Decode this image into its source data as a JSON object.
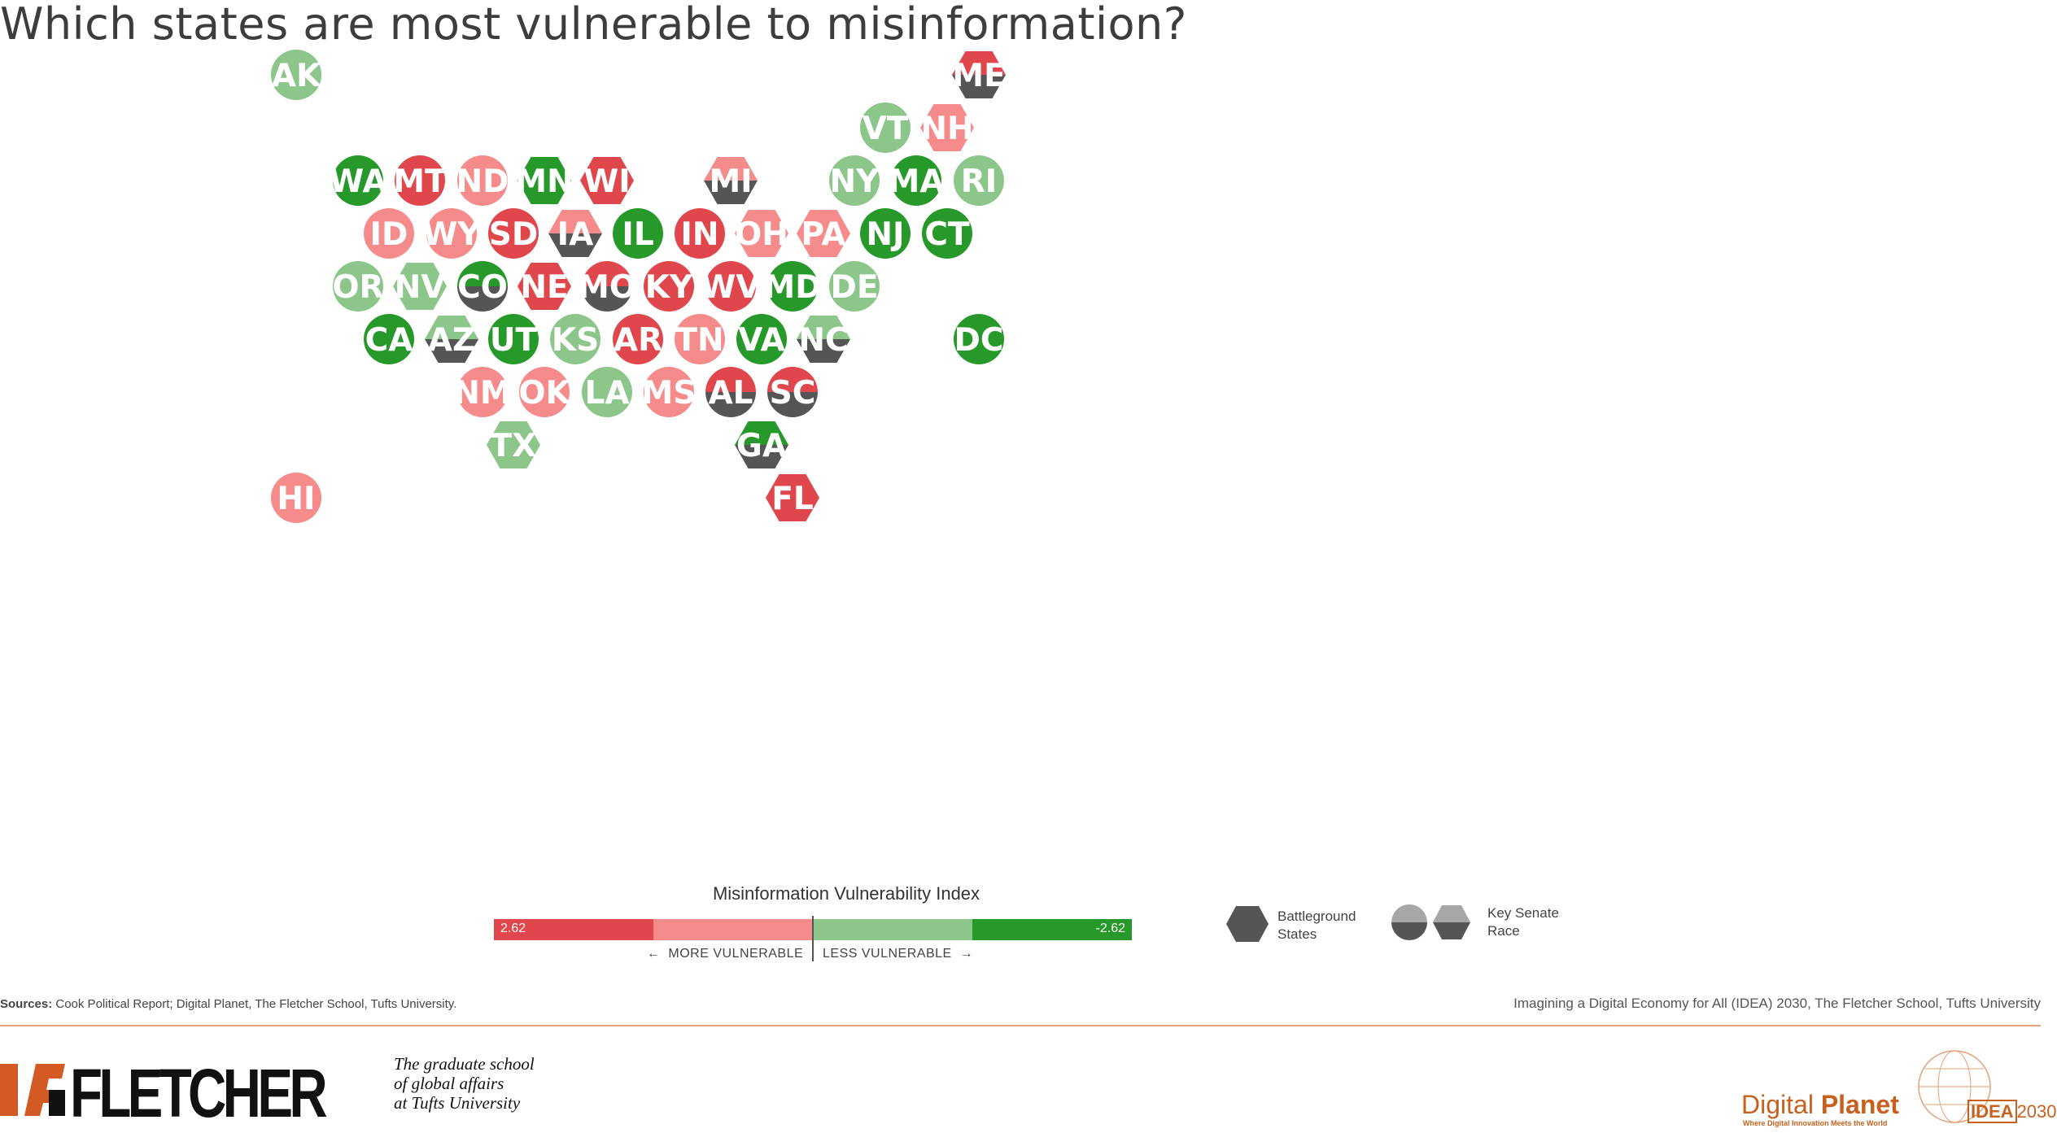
{
  "title": "Which states are most vulnerable to misinformation?",
  "colors": {
    "very_high": "#e0474c",
    "high": "#f58b8b",
    "low": "#8dc68b",
    "very_low": "#27982a",
    "senate": "#555555"
  },
  "states": [
    {
      "abbr": "AK",
      "cat": "low",
      "shape": "circle"
    },
    {
      "abbr": "ME",
      "cat": "very_high",
      "shape": "hex",
      "senate": true
    },
    {
      "abbr": "VT",
      "cat": "low",
      "shape": "circle"
    },
    {
      "abbr": "NH",
      "cat": "high",
      "shape": "hex"
    },
    {
      "abbr": "WA",
      "cat": "very_low",
      "shape": "circle"
    },
    {
      "abbr": "MT",
      "cat": "very_high",
      "shape": "circle"
    },
    {
      "abbr": "ND",
      "cat": "high",
      "shape": "circle"
    },
    {
      "abbr": "MN",
      "cat": "very_low",
      "shape": "hex"
    },
    {
      "abbr": "WI",
      "cat": "very_high",
      "shape": "hex"
    },
    {
      "abbr": "MI",
      "cat": "high",
      "shape": "hex",
      "senate": true
    },
    {
      "abbr": "NY",
      "cat": "low",
      "shape": "circle"
    },
    {
      "abbr": "MA",
      "cat": "very_low",
      "shape": "circle"
    },
    {
      "abbr": "RI",
      "cat": "low",
      "shape": "circle"
    },
    {
      "abbr": "ID",
      "cat": "high",
      "shape": "circle"
    },
    {
      "abbr": "WY",
      "cat": "high",
      "shape": "circle"
    },
    {
      "abbr": "SD",
      "cat": "very_high",
      "shape": "circle"
    },
    {
      "abbr": "IA",
      "cat": "high",
      "shape": "hex",
      "senate": true
    },
    {
      "abbr": "IL",
      "cat": "very_low",
      "shape": "circle"
    },
    {
      "abbr": "IN",
      "cat": "very_high",
      "shape": "circle"
    },
    {
      "abbr": "OH",
      "cat": "high",
      "shape": "hex"
    },
    {
      "abbr": "PA",
      "cat": "high",
      "shape": "hex"
    },
    {
      "abbr": "NJ",
      "cat": "very_low",
      "shape": "circle"
    },
    {
      "abbr": "CT",
      "cat": "very_low",
      "shape": "circle"
    },
    {
      "abbr": "OR",
      "cat": "low",
      "shape": "circle"
    },
    {
      "abbr": "NV",
      "cat": "low",
      "shape": "hex"
    },
    {
      "abbr": "CO",
      "cat": "very_low",
      "shape": "circle",
      "senate": true
    },
    {
      "abbr": "NE",
      "cat": "very_high",
      "shape": "hex"
    },
    {
      "abbr": "MO",
      "cat": "very_high",
      "shape": "circle",
      "senate": true
    },
    {
      "abbr": "KY",
      "cat": "very_high",
      "shape": "circle"
    },
    {
      "abbr": "WV",
      "cat": "very_high",
      "shape": "circle"
    },
    {
      "abbr": "MD",
      "cat": "very_low",
      "shape": "circle"
    },
    {
      "abbr": "DE",
      "cat": "low",
      "shape": "circle"
    },
    {
      "abbr": "CA",
      "cat": "very_low",
      "shape": "circle"
    },
    {
      "abbr": "AZ",
      "cat": "low",
      "shape": "hex",
      "senate": true
    },
    {
      "abbr": "UT",
      "cat": "very_low",
      "shape": "circle"
    },
    {
      "abbr": "KS",
      "cat": "low",
      "shape": "circle"
    },
    {
      "abbr": "AR",
      "cat": "very_high",
      "shape": "circle"
    },
    {
      "abbr": "TN",
      "cat": "high",
      "shape": "circle"
    },
    {
      "abbr": "VA",
      "cat": "very_low",
      "shape": "circle"
    },
    {
      "abbr": "NC",
      "cat": "low",
      "shape": "hex",
      "senate": true
    },
    {
      "abbr": "DC",
      "cat": "very_low",
      "shape": "circle"
    },
    {
      "abbr": "NM",
      "cat": "high",
      "shape": "circle"
    },
    {
      "abbr": "OK",
      "cat": "high",
      "shape": "circle"
    },
    {
      "abbr": "LA",
      "cat": "low",
      "shape": "circle"
    },
    {
      "abbr": "MS",
      "cat": "high",
      "shape": "circle"
    },
    {
      "abbr": "AL",
      "cat": "very_high",
      "shape": "circle",
      "senate": true
    },
    {
      "abbr": "SC",
      "cat": "very_high",
      "shape": "circle",
      "senate": true
    },
    {
      "abbr": "TX",
      "cat": "low",
      "shape": "hex"
    },
    {
      "abbr": "GA",
      "cat": "very_low",
      "shape": "hex",
      "senate": true
    },
    {
      "abbr": "HI",
      "cat": "high",
      "shape": "circle"
    },
    {
      "abbr": "FL",
      "cat": "very_high",
      "shape": "hex"
    }
  ],
  "legend": {
    "title": "Misinformation Vulnerability Index",
    "min_label": "2.62",
    "max_label": "-2.62",
    "more": "MORE VULNERABLE",
    "less": "LESS VULNERABLE",
    "battleground": "Battleground States",
    "senate": "Key Senate Race"
  },
  "footer": {
    "sources_label": "Sources:",
    "sources_text": "Cook Political Report; Digital Planet, The Fletcher School, Tufts University.",
    "credit": "Imagining a Digital Economy for All (IDEA) 2030, The Fletcher School, Tufts University",
    "fletcher": "FLETCHER",
    "tagline_1": "The graduate school",
    "tagline_2": "of global affairs",
    "tagline_3": "at Tufts University",
    "dp_light": "Digital ",
    "dp_bold": "Planet",
    "dp_tag": "Where Digital Innovation Meets the World",
    "idea_box": "IDEA",
    "idea_year": "2030"
  }
}
